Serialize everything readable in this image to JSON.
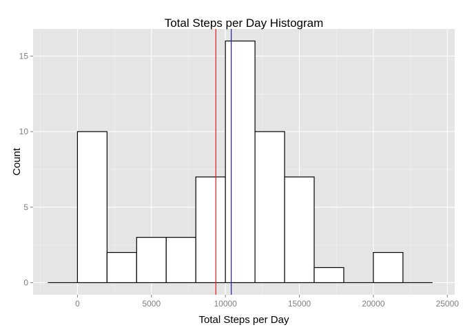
{
  "chart_data": {
    "type": "bar",
    "title": "Total Steps per Day Histogram",
    "xlabel": "Total Steps per Day",
    "ylabel": "Count",
    "xlim": [
      -3000,
      25500
    ],
    "ylim": [
      -0.8,
      16.8
    ],
    "xticks": [
      0,
      5000,
      10000,
      15000,
      20000,
      25000
    ],
    "xtick_labels": [
      "0",
      "5000",
      "10000",
      "15000",
      "20000",
      "25000"
    ],
    "yticks": [
      0,
      5,
      10,
      15
    ],
    "ytick_labels": [
      "0",
      "5",
      "10",
      "15"
    ],
    "bin_width": 2000,
    "bins": [
      {
        "start": -2000,
        "end": 0,
        "count": 0
      },
      {
        "start": 0,
        "end": 2000,
        "count": 10
      },
      {
        "start": 2000,
        "end": 4000,
        "count": 2
      },
      {
        "start": 4000,
        "end": 6000,
        "count": 3
      },
      {
        "start": 6000,
        "end": 8000,
        "count": 3
      },
      {
        "start": 8000,
        "end": 10000,
        "count": 7
      },
      {
        "start": 10000,
        "end": 12000,
        "count": 16
      },
      {
        "start": 12000,
        "end": 14000,
        "count": 10
      },
      {
        "start": 14000,
        "end": 16000,
        "count": 7
      },
      {
        "start": 16000,
        "end": 18000,
        "count": 1
      },
      {
        "start": 18000,
        "end": 20000,
        "count": 0
      },
      {
        "start": 20000,
        "end": 22000,
        "count": 2
      },
      {
        "start": 22000,
        "end": 24000,
        "count": 0
      }
    ],
    "vlines": [
      {
        "value": 9354,
        "color": "#e41a1c"
      },
      {
        "value": 10395,
        "color": "#1f1fb4"
      }
    ],
    "grid": true,
    "colors": {
      "panel_bg": "#e5e5e5",
      "grid_major": "#ffffff",
      "grid_minor": "#f2f2f2",
      "bar_fill": "#ffffff",
      "bar_stroke": "#000000",
      "tick_label": "#7f7f7f"
    }
  }
}
